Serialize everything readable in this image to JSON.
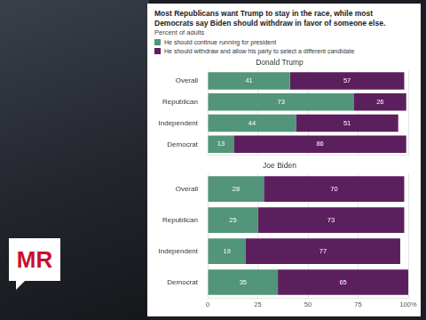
{
  "header": {
    "title": "Most Republicans want Trump to stay in the race, while most Democrats say Biden should withdraw in favor of someone else.",
    "subtitle": "Percent of adults"
  },
  "logo": "MR",
  "chart_data": [
    {
      "type": "bar",
      "title": "Donald Trump",
      "orientation": "horizontal",
      "stacked": true,
      "data_labels": true,
      "grid": true,
      "legend": "top",
      "tick_labels": "y",
      "categories": [
        "Overall",
        "Republican",
        "Independent",
        "Democrat"
      ],
      "series": [
        {
          "name": "He should continue running for president",
          "color": "#52957a",
          "values": [
            41,
            73,
            44,
            13
          ]
        },
        {
          "name": "He should withdraw and allow his party to select a different candidate",
          "color": "#5c1f5d",
          "values": [
            57,
            26,
            51,
            86
          ]
        }
      ],
      "xlim": [
        0,
        100
      ],
      "xticks": [
        0,
        25,
        50,
        75,
        {
          "value": 100,
          "label": "100%"
        }
      ]
    },
    {
      "type": "bar",
      "title": "Joe Biden",
      "orientation": "horizontal",
      "stacked": true,
      "data_labels": true,
      "grid": true,
      "categories": [
        "Overall",
        "Republican",
        "Independent",
        "Democrat"
      ],
      "series": [
        {
          "name": "He should continue running for president",
          "color": "#52957a",
          "values": [
            28,
            25,
            19,
            35
          ]
        },
        {
          "name": "He should withdraw and allow his party to select a different candidate",
          "color": "#5c1f5d",
          "values": [
            70,
            73,
            77,
            65
          ]
        }
      ],
      "xlim": [
        0,
        100
      ],
      "xticks": [
        0,
        25,
        50,
        75,
        {
          "value": 100,
          "label": "100%"
        }
      ]
    }
  ]
}
